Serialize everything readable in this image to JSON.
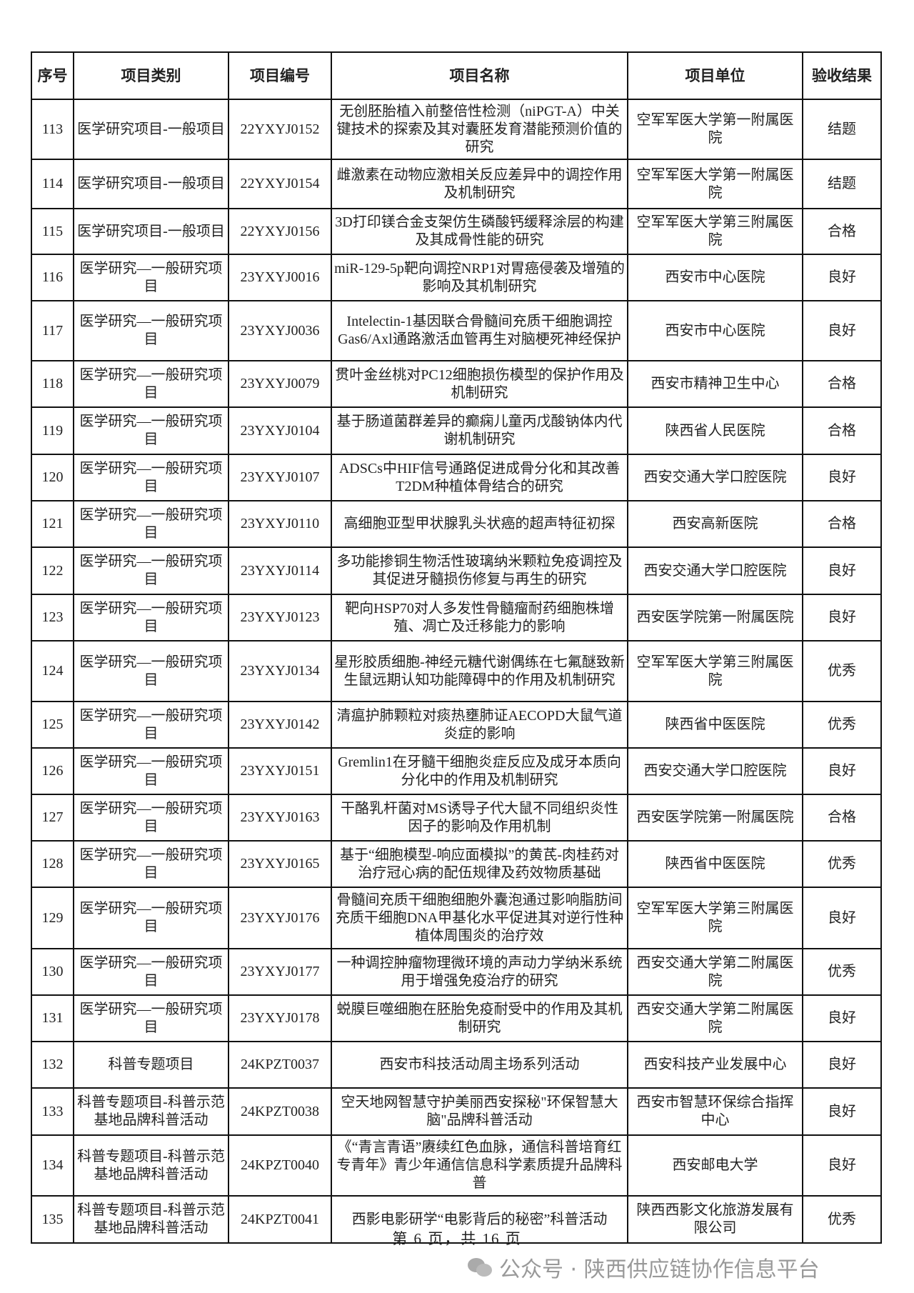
{
  "table": {
    "headers": [
      "序号",
      "项目类别",
      "项目编号",
      "项目名称",
      "项目单位",
      "验收结果"
    ],
    "rows": [
      {
        "no": "113",
        "category": "医学研究项目-一般项目",
        "code": "22YXYJ0152",
        "name": "无创胚胎植入前整倍性检测（niPGT-A）中关键技术的探索及其对囊胚发育潜能预测价值的研究",
        "unit": "空军军医大学第一附属医院",
        "result": "结题"
      },
      {
        "no": "114",
        "category": "医学研究项目-一般项目",
        "code": "22YXYJ0154",
        "name": "雌激素在动物应激相关反应差异中的调控作用及机制研究",
        "unit": "空军军医大学第一附属医院",
        "result": "结题"
      },
      {
        "no": "115",
        "category": "医学研究项目-一般项目",
        "code": "22YXYJ0156",
        "name": "3D打印镁合金支架仿生磷酸钙缓释涂层的构建及其成骨性能的研究",
        "unit": "空军军医大学第三附属医院",
        "result": "合格"
      },
      {
        "no": "116",
        "category": "医学研究—一般研究项目",
        "code": "23YXYJ0016",
        "name": "miR-129-5p靶向调控NRP1对胃癌侵袭及增殖的影响及其机制研究",
        "unit": "西安市中心医院",
        "result": "良好"
      },
      {
        "no": "117",
        "category": "医学研究—一般研究项目",
        "code": "23YXYJ0036",
        "name": "Intelectin-1基因联合骨髓间充质干细胞调控Gas6/Axl通路激活血管再生对脑梗死神经保护",
        "unit": "西安市中心医院",
        "result": "良好"
      },
      {
        "no": "118",
        "category": "医学研究—一般研究项目",
        "code": "23YXYJ0079",
        "name": "贯叶金丝桃对PC12细胞损伤模型的保护作用及机制研究",
        "unit": "西安市精神卫生中心",
        "result": "合格"
      },
      {
        "no": "119",
        "category": "医学研究—一般研究项目",
        "code": "23YXYJ0104",
        "name": "基于肠道菌群差异的癫痫儿童丙戊酸钠体内代谢机制研究",
        "unit": "陕西省人民医院",
        "result": "合格"
      },
      {
        "no": "120",
        "category": "医学研究—一般研究项目",
        "code": "23YXYJ0107",
        "name": "ADSCs中HIF信号通路促进成骨分化和其改善T2DM种植体骨结合的研究",
        "unit": "西安交通大学口腔医院",
        "result": "良好"
      },
      {
        "no": "121",
        "category": "医学研究—一般研究项目",
        "code": "23YXYJ0110",
        "name": "高细胞亚型甲状腺乳头状癌的超声特征初探",
        "unit": "西安高新医院",
        "result": "合格"
      },
      {
        "no": "122",
        "category": "医学研究—一般研究项目",
        "code": "23YXYJ0114",
        "name": "多功能掺铜生物活性玻璃纳米颗粒免疫调控及其促进牙髓损伤修复与再生的研究",
        "unit": "西安交通大学口腔医院",
        "result": "良好"
      },
      {
        "no": "123",
        "category": "医学研究—一般研究项目",
        "code": "23YXYJ0123",
        "name": "靶向HSP70对人多发性骨髓瘤耐药细胞株增殖、凋亡及迁移能力的影响",
        "unit": "西安医学院第一附属医院",
        "result": "良好"
      },
      {
        "no": "124",
        "category": "医学研究—一般研究项目",
        "code": "23YXYJ0134",
        "name": "星形胶质细胞-神经元糖代谢偶练在七氟醚致新生鼠远期认知功能障碍中的作用及机制研究",
        "unit": "空军军医大学第三附属医院",
        "result": "优秀"
      },
      {
        "no": "125",
        "category": "医学研究—一般研究项目",
        "code": "23YXYJ0142",
        "name": "清瘟护肺颗粒对痰热壅肺证AECOPD大鼠气道炎症的影响",
        "unit": "陕西省中医医院",
        "result": "优秀"
      },
      {
        "no": "126",
        "category": "医学研究—一般研究项目",
        "code": "23YXYJ0151",
        "name": "Gremlin1在牙髓干细胞炎症反应及成牙本质向分化中的作用及机制研究",
        "unit": "西安交通大学口腔医院",
        "result": "良好"
      },
      {
        "no": "127",
        "category": "医学研究—一般研究项目",
        "code": "23YXYJ0163",
        "name": "干酪乳杆菌对MS诱导子代大鼠不同组织炎性因子的影响及作用机制",
        "unit": "西安医学院第一附属医院",
        "result": "合格"
      },
      {
        "no": "128",
        "category": "医学研究—一般研究项目",
        "code": "23YXYJ0165",
        "name": "基于“细胞模型-响应面模拟”的黄芪-肉桂药对治疗冠心病的配伍规律及药效物质基础",
        "unit": "陕西省中医医院",
        "result": "优秀"
      },
      {
        "no": "129",
        "category": "医学研究—一般研究项目",
        "code": "23YXYJ0176",
        "name": "骨髓间充质干细胞细胞外囊泡通过影响脂肪间充质干细胞DNA甲基化水平促进其对逆行性种植体周围炎的治疗效",
        "unit": "空军军医大学第三附属医院",
        "result": "良好"
      },
      {
        "no": "130",
        "category": "医学研究—一般研究项目",
        "code": "23YXYJ0177",
        "name": "一种调控肿瘤物理微环境的声动力学纳米系统用于增强免疫治疗的研究",
        "unit": "西安交通大学第二附属医院",
        "result": "优秀"
      },
      {
        "no": "131",
        "category": "医学研究—一般研究项目",
        "code": "23YXYJ0178",
        "name": "蜕膜巨噬细胞在胚胎免疫耐受中的作用及其机制研究",
        "unit": "西安交通大学第二附属医院",
        "result": "良好"
      },
      {
        "no": "132",
        "category": "科普专题项目",
        "code": "24KPZT0037",
        "name": "西安市科技活动周主场系列活动",
        "unit": "西安科技产业发展中心",
        "result": "良好"
      },
      {
        "no": "133",
        "category": "科普专题项目-科普示范基地品牌科普活动",
        "code": "24KPZT0038",
        "name": "空天地网智慧守护美丽西安探秘\"环保智慧大脑\"品牌科普活动",
        "unit": "西安市智慧环保综合指挥中心",
        "result": "良好"
      },
      {
        "no": "134",
        "category": "科普专题项目-科普示范基地品牌科普活动",
        "code": "24KPZT0040",
        "name": "《“青言青语”赓续红色血脉，通信科普培育红专青年》青少年通信信息科学素质提升品牌科普",
        "unit": "西安邮电大学",
        "result": "良好"
      },
      {
        "no": "135",
        "category": "科普专题项目-科普示范基地品牌科普活动",
        "code": "24KPZT0041",
        "name": "西影电影研学“电影背后的秘密”科普活动",
        "unit": "陕西西影文化旅游发展有限公司",
        "result": "优秀"
      }
    ]
  },
  "footer": {
    "page_text": "第 6 页，共 16 页"
  },
  "watermark": {
    "text": "公众号 · 陕西供应链协作信息平台",
    "icon": "wechat-icon"
  }
}
